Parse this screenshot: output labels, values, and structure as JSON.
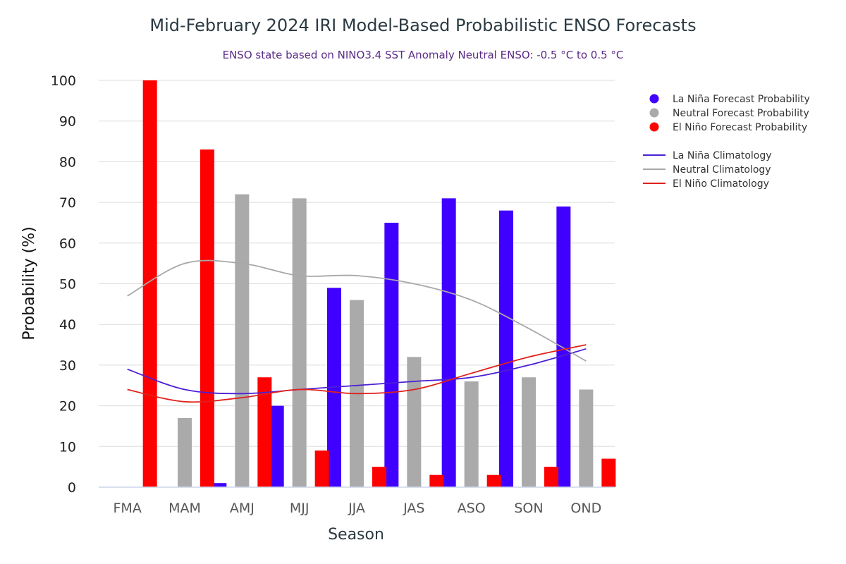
{
  "chart_data": {
    "type": "bar",
    "title": "Mid-February 2024 IRI Model-Based Probabilistic ENSO Forecasts",
    "subtitle": "ENSO state based on NINO3.4 SST Anomaly Neutral ENSO: -0.5 °C to 0.5 °C",
    "xlabel": "Season",
    "ylabel": "Probability (%)",
    "ylim": [
      0,
      100
    ],
    "yticks": [
      0,
      10,
      20,
      30,
      40,
      50,
      60,
      70,
      80,
      90,
      100
    ],
    "grid": true,
    "legend_position": "right",
    "categories": [
      "FMA",
      "MAM",
      "AMJ",
      "MJJ",
      "JJA",
      "JAS",
      "ASO",
      "SON",
      "OND"
    ],
    "series": [
      {
        "name": "La Niña Forecast Probability",
        "color": "#4000ff",
        "kind": "bar",
        "values": [
          0,
          0,
          1,
          20,
          49,
          65,
          71,
          68,
          69
        ]
      },
      {
        "name": "Neutral Forecast Probability",
        "color": "#aaaaaa",
        "kind": "bar",
        "values": [
          0,
          17,
          72,
          71,
          46,
          32,
          26,
          27,
          24
        ]
      },
      {
        "name": "El Niño Forecast Probability",
        "color": "#ff0000",
        "kind": "bar",
        "values": [
          100,
          83,
          27,
          9,
          5,
          3,
          3,
          5,
          7
        ]
      }
    ],
    "lines": [
      {
        "name": "La Niña Climatology",
        "color": "#4b1fd6",
        "kind": "line",
        "values": [
          29,
          24,
          23,
          24,
          25,
          26,
          27,
          30,
          34
        ]
      },
      {
        "name": "Neutral Climatology",
        "color": "#a8a8a8",
        "kind": "line",
        "values": [
          47,
          55,
          55,
          52,
          52,
          50,
          46,
          39,
          31
        ]
      },
      {
        "name": "El Niño Climatology",
        "color": "#e0201b",
        "kind": "line",
        "values": [
          24,
          21,
          22,
          24,
          23,
          24,
          28,
          32,
          35
        ]
      }
    ]
  }
}
